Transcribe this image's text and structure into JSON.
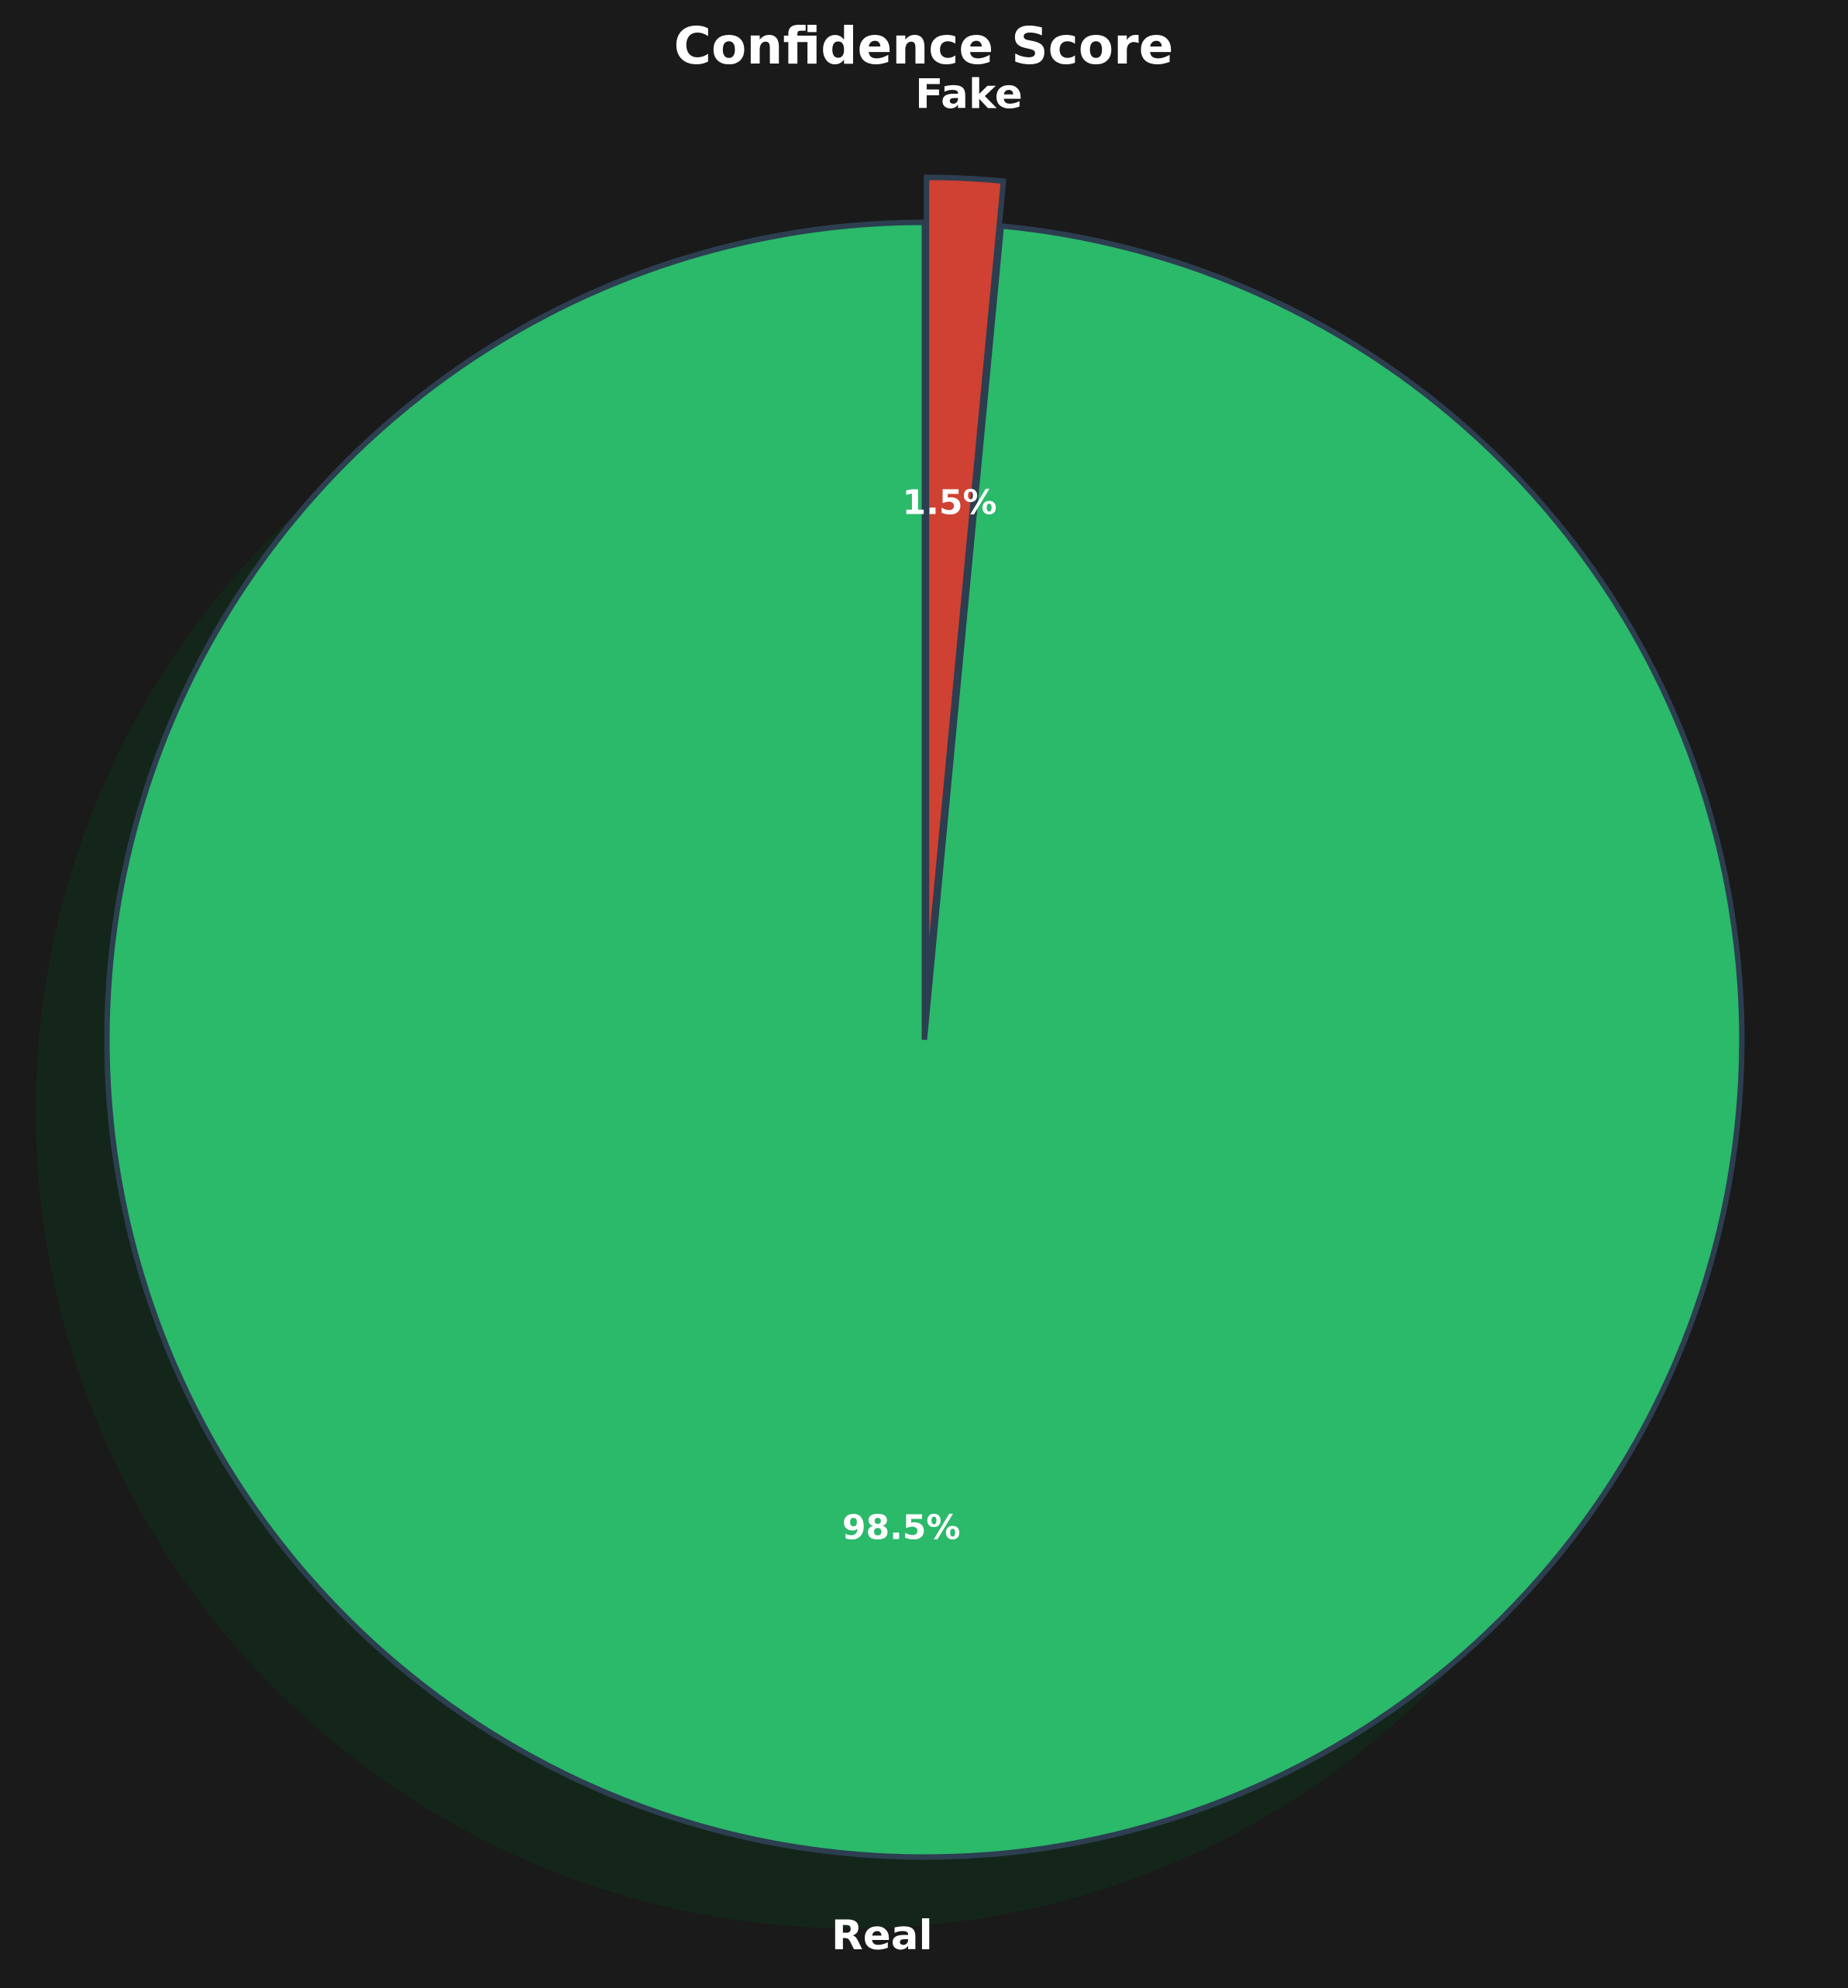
{
  "chart_data": {
    "type": "pie",
    "title": "Confidence Score",
    "categories": [
      "Real",
      "Fake"
    ],
    "values": [
      98.5,
      1.5
    ],
    "value_labels": [
      "98.5%",
      "1.5%"
    ],
    "colors": [
      "#2bb96a",
      "#cf4132"
    ],
    "edge_color": "#2c3e50",
    "shadow_color": "#142619",
    "background": "#1a1a1a",
    "exploded": [
      "Fake"
    ],
    "start_angle": "12 o'clock",
    "direction": "counter-clockwise",
    "legend": "none"
  }
}
